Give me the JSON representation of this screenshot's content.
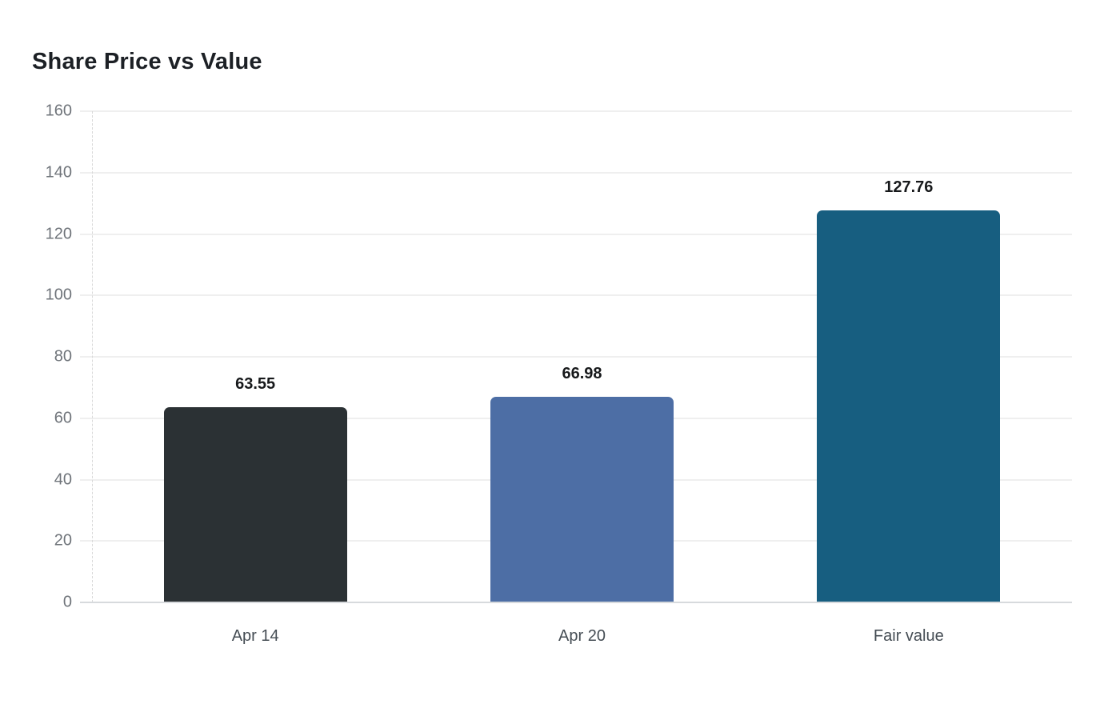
{
  "chart_data": {
    "type": "bar",
    "title": "Share Price vs Value",
    "categories": [
      "Apr 14",
      "Apr 20",
      "Fair value"
    ],
    "values": [
      63.55,
      66.98,
      127.76
    ],
    "value_labels": [
      "63.55",
      "66.98",
      "127.76"
    ],
    "bar_colors": [
      "#2b3134",
      "#4d6ea5",
      "#175e80"
    ],
    "xlabel": "",
    "ylabel": "",
    "ylim": [
      0,
      160
    ],
    "yticks": [
      0,
      20,
      40,
      60,
      80,
      100,
      120,
      140,
      160
    ],
    "grid": true,
    "legend": false,
    "layout": {
      "grid_color": "#efefef",
      "baseline_color": "#d7dadd",
      "axis_dash_color": "#d9d9d9",
      "title_color": "#1c2025",
      "ytick_color": "#6f747a",
      "xtick_color": "#454d54",
      "value_label_color": "#17191b",
      "background": "#ffffff"
    }
  }
}
